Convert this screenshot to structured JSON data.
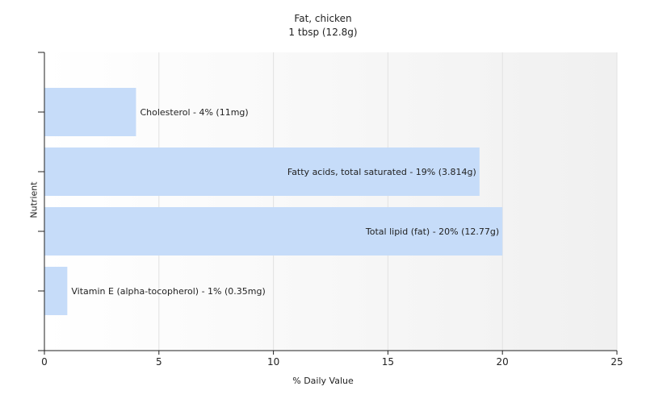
{
  "chart_data": {
    "type": "bar",
    "orientation": "horizontal",
    "title": "Fat, chicken",
    "subtitle": "1 tbsp (12.8g)",
    "xlabel": "% Daily Value",
    "ylabel": "Nutrient",
    "xlim": [
      0,
      25
    ],
    "xticks": [
      "0",
      "5",
      "10",
      "15",
      "20",
      "25"
    ],
    "grid": "vertical",
    "bar_color": "#c6dcf9",
    "categories": [
      "Cholesterol",
      "Fatty acids, total saturated",
      "Total lipid (fat)",
      "Vitamin E (alpha-tocopherol)"
    ],
    "values": [
      4,
      19,
      20,
      1
    ],
    "data_labels": [
      "Cholesterol - 4% (11mg)",
      "Fatty acids, total saturated - 19% (3.814g)",
      "Total lipid (fat) - 20% (12.77g)",
      "Vitamin E (alpha-tocopherol) - 1% (0.35mg)"
    ]
  }
}
